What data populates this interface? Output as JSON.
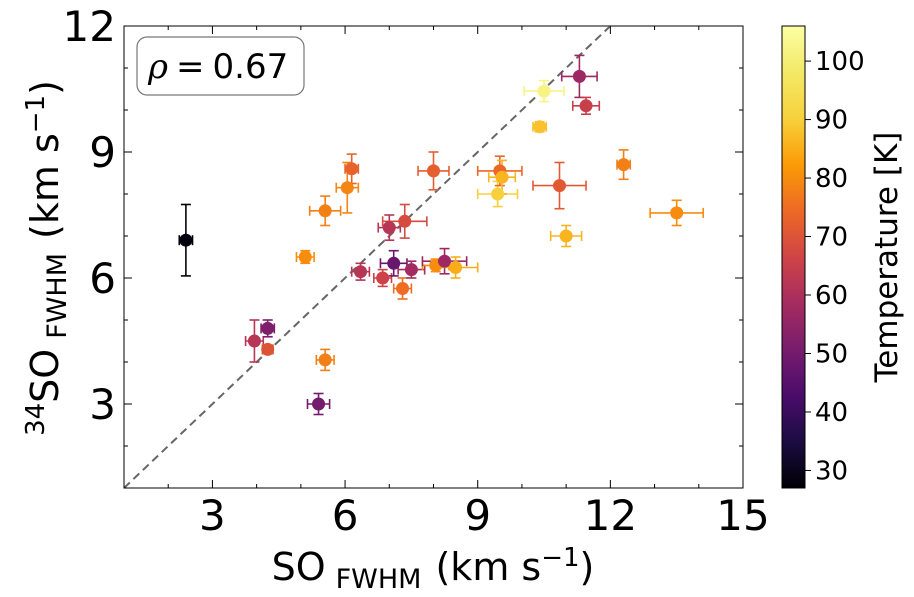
{
  "chart_data": {
    "type": "scatter",
    "title": "",
    "xlabel": {
      "main": "SO",
      "sub": "FWHM",
      "unit_pre": "(km s",
      "unit_sup": "−1",
      "unit_post": ")"
    },
    "ylabel": {
      "sup_pre": "34",
      "main": "SO",
      "sub": "FWHM",
      "unit_pre": "(km s",
      "unit_sup": "−1",
      "unit_post": ")"
    },
    "xlim": [
      1,
      15
    ],
    "ylim": [
      1,
      12
    ],
    "xticks": [
      3,
      6,
      9,
      12,
      15
    ],
    "xtick_labels": [
      "3",
      "6",
      "9",
      "12",
      "15"
    ],
    "yticks": [
      3,
      6,
      9,
      12
    ],
    "ytick_labels": [
      "3",
      "6",
      "9",
      "12"
    ],
    "grid": false,
    "annotation": {
      "text": "ρ = 0.67",
      "symbol": "ρ",
      "equals": "=",
      "value": "0.67",
      "position": "top-left"
    },
    "reference_line": {
      "type": "one-to-one",
      "style": "dashed",
      "color": "#666666"
    },
    "colorbar": {
      "label": "Temperature [K]",
      "range": [
        27,
        106
      ],
      "ticks": [
        30,
        40,
        50,
        60,
        70,
        80,
        90,
        100
      ],
      "tick_labels": [
        "30",
        "40",
        "50",
        "60",
        "70",
        "80",
        "90",
        "100"
      ],
      "colormap": "inferno"
    },
    "points": [
      {
        "x": 2.4,
        "y": 6.9,
        "xerr": 0.15,
        "yerr": 0.85,
        "temp": 28
      },
      {
        "x": 3.95,
        "y": 4.5,
        "xerr": 0.2,
        "yerr": 0.5,
        "temp": 62
      },
      {
        "x": 4.25,
        "y": 4.8,
        "xerr": 0.15,
        "yerr": 0.2,
        "temp": 52
      },
      {
        "x": 4.25,
        "y": 4.3,
        "xerr": 0.12,
        "yerr": 0.1,
        "temp": 70
      },
      {
        "x": 5.1,
        "y": 6.5,
        "xerr": 0.2,
        "yerr": 0.15,
        "temp": 80
      },
      {
        "x": 5.4,
        "y": 3.0,
        "xerr": 0.25,
        "yerr": 0.25,
        "temp": 50
      },
      {
        "x": 5.55,
        "y": 7.6,
        "xerr": 0.35,
        "yerr": 0.35,
        "temp": 78
      },
      {
        "x": 5.55,
        "y": 4.05,
        "xerr": 0.2,
        "yerr": 0.25,
        "temp": 78
      },
      {
        "x": 6.05,
        "y": 8.15,
        "xerr": 0.25,
        "yerr": 0.6,
        "temp": 79
      },
      {
        "x": 6.15,
        "y": 8.6,
        "xerr": 0.15,
        "yerr": 0.35,
        "temp": 73
      },
      {
        "x": 6.35,
        "y": 6.15,
        "xerr": 0.2,
        "yerr": 0.2,
        "temp": 62
      },
      {
        "x": 6.85,
        "y": 6.0,
        "xerr": 0.2,
        "yerr": 0.2,
        "temp": 66
      },
      {
        "x": 7.0,
        "y": 7.2,
        "xerr": 0.25,
        "yerr": 0.3,
        "temp": 62
      },
      {
        "x": 7.1,
        "y": 6.35,
        "xerr": 0.3,
        "yerr": 0.3,
        "temp": 48
      },
      {
        "x": 7.3,
        "y": 5.75,
        "xerr": 0.2,
        "yerr": 0.25,
        "temp": 75
      },
      {
        "x": 7.35,
        "y": 7.35,
        "xerr": 0.5,
        "yerr": 0.4,
        "temp": 68
      },
      {
        "x": 7.5,
        "y": 6.2,
        "xerr": 0.3,
        "yerr": 0.2,
        "temp": 58
      },
      {
        "x": 8.0,
        "y": 8.55,
        "xerr": 0.35,
        "yerr": 0.45,
        "temp": 72
      },
      {
        "x": 8.05,
        "y": 6.3,
        "xerr": 0.3,
        "yerr": 0.15,
        "temp": 80
      },
      {
        "x": 8.25,
        "y": 6.4,
        "xerr": 0.5,
        "yerr": 0.3,
        "temp": 57
      },
      {
        "x": 8.5,
        "y": 6.25,
        "xerr": 0.5,
        "yerr": 0.25,
        "temp": 85
      },
      {
        "x": 9.45,
        "y": 8.0,
        "xerr": 0.45,
        "yerr": 0.3,
        "temp": 90
      },
      {
        "x": 9.5,
        "y": 8.55,
        "xerr": 0.5,
        "yerr": 0.35,
        "temp": 74
      },
      {
        "x": 9.55,
        "y": 8.4,
        "xerr": 0.3,
        "yerr": 0.4,
        "temp": 86
      },
      {
        "x": 10.4,
        "y": 9.6,
        "xerr": 0.15,
        "yerr": 0.12,
        "temp": 88
      },
      {
        "x": 10.5,
        "y": 10.45,
        "xerr": 0.45,
        "yerr": 0.25,
        "temp": 102
      },
      {
        "x": 10.85,
        "y": 8.2,
        "xerr": 0.6,
        "yerr": 0.55,
        "temp": 71
      },
      {
        "x": 11.0,
        "y": 7.0,
        "xerr": 0.35,
        "yerr": 0.25,
        "temp": 86
      },
      {
        "x": 11.3,
        "y": 10.8,
        "xerr": 0.4,
        "yerr": 0.5,
        "temp": 57
      },
      {
        "x": 11.45,
        "y": 10.1,
        "xerr": 0.3,
        "yerr": 0.2,
        "temp": 65
      },
      {
        "x": 12.3,
        "y": 8.7,
        "xerr": 0.15,
        "yerr": 0.35,
        "temp": 78
      },
      {
        "x": 13.5,
        "y": 7.55,
        "xerr": 0.6,
        "yerr": 0.3,
        "temp": 80
      }
    ]
  }
}
